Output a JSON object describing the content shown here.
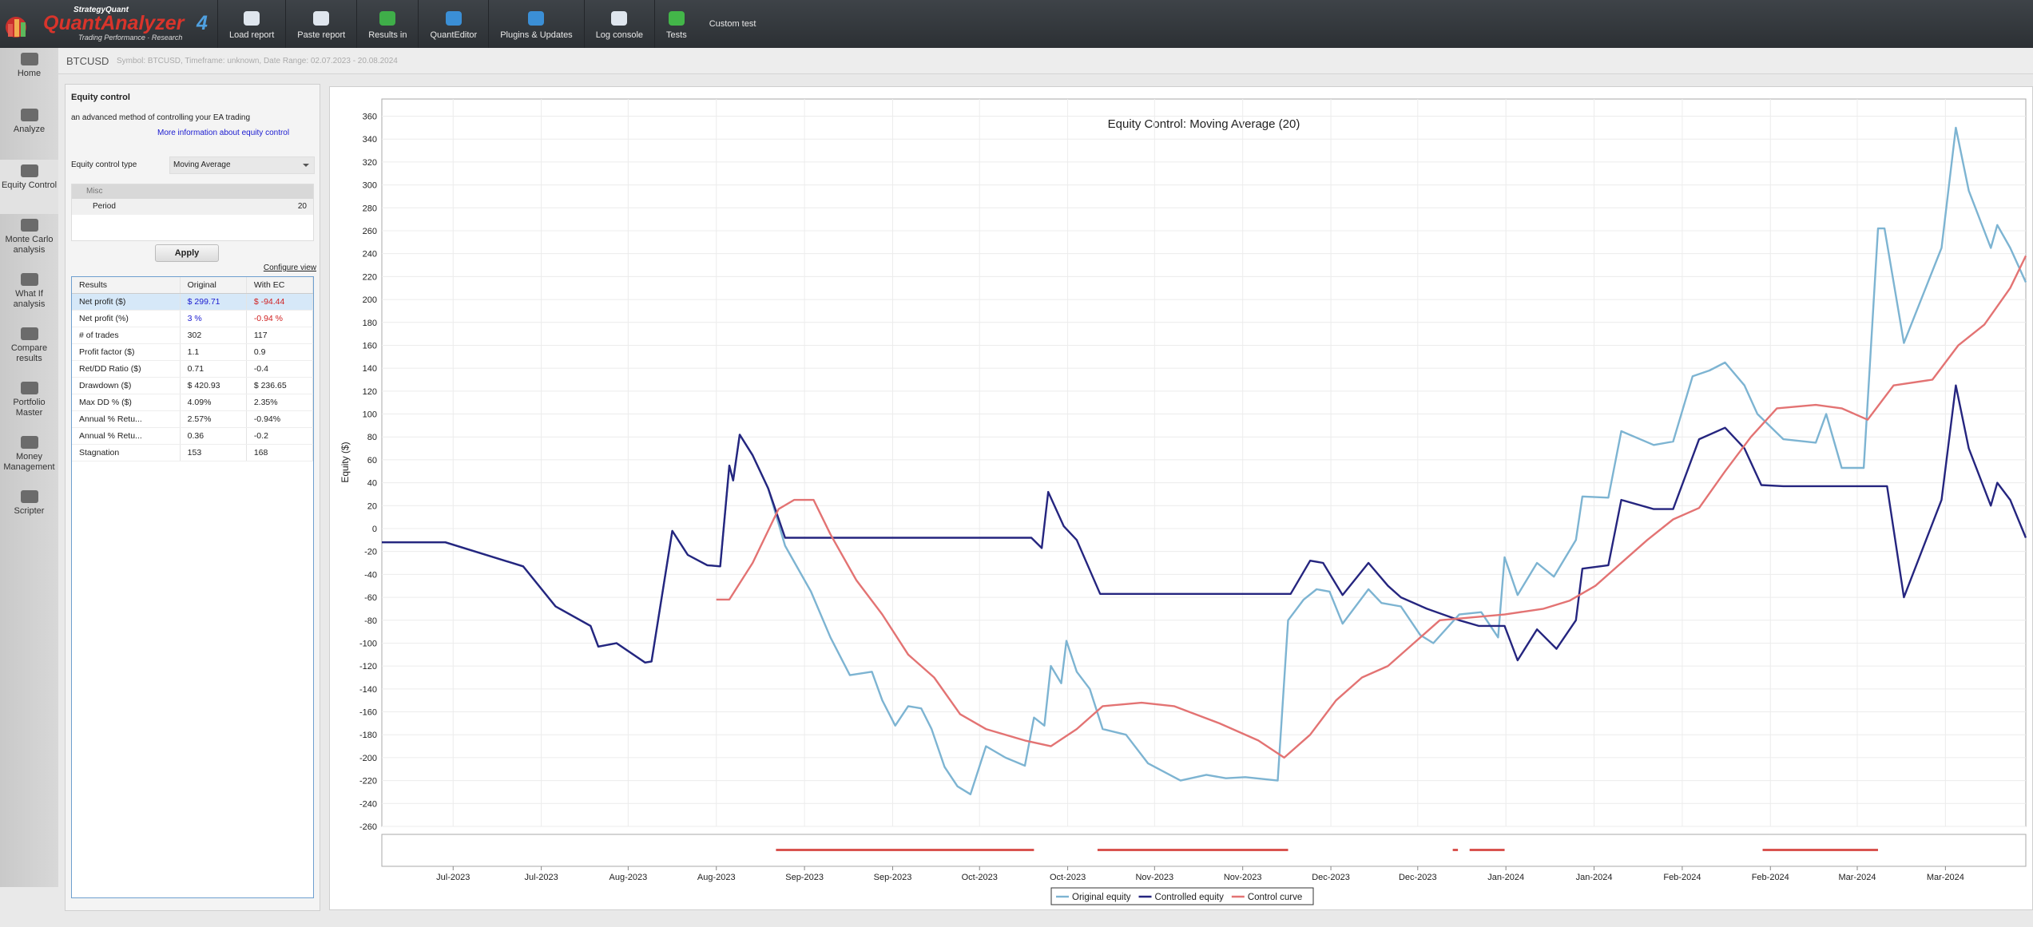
{
  "app": {
    "brand": "StrategyQuant",
    "product": "QuantAnalyzer",
    "version": "4",
    "tagline": "Trading Performance · Research"
  },
  "toolbar": [
    "Load report",
    "Paste report",
    "Results in",
    "QuantEditor",
    "Plugins & Updates",
    "Log console",
    "Tests",
    "Custom test"
  ],
  "sidebar": [
    "Home",
    "Analyze",
    "Equity Control",
    "Monte Carlo analysis",
    "What If analysis",
    "Compare results",
    "Portfolio Master",
    "Money Management",
    "Scripter"
  ],
  "header": {
    "title": "BTCUSD",
    "subtitle": "Symbol: BTCUSD, Timeframe: unknown, Date Range: 02.07.2023 - 20.08.2024"
  },
  "panel": {
    "title": "Equity control",
    "description": "an advanced method of controlling your EA trading",
    "link": "More information about equity control",
    "type_label": "Equity control type",
    "type_value": "Moving Average",
    "group": "Misc",
    "param_name": "Period",
    "param_value": "20",
    "apply": "Apply",
    "configure": "Configure view"
  },
  "table": {
    "columns": [
      "Results",
      "Original",
      "With EC"
    ],
    "rows": [
      [
        "Net profit ($)",
        "$ 299.71",
        "$ -94.44"
      ],
      [
        "Net profit (%)",
        "3 %",
        "-0.94 %"
      ],
      [
        "# of trades",
        "302",
        "117"
      ],
      [
        "Profit factor ($)",
        "1.1",
        "0.9"
      ],
      [
        "Ret/DD Ratio ($)",
        "0.71",
        "-0.4"
      ],
      [
        "Drawdown ($)",
        "$ 420.93",
        "$ 236.65"
      ],
      [
        "Max DD % ($)",
        "4.09%",
        "2.35%"
      ],
      [
        "Annual % Retu...",
        "2.57%",
        "-0.94%"
      ],
      [
        "Annual % Retu...",
        "0.36",
        "-0.2"
      ],
      [
        "Stagnation",
        "153",
        "168"
      ]
    ]
  },
  "chart_data": {
    "type": "line",
    "title": "Equity Control: Moving Average (20)",
    "y_label": "Equity ($)",
    "grid": true,
    "ylim": [
      -260,
      375
    ],
    "yticks": [
      -260,
      -240,
      -220,
      -200,
      -180,
      -160,
      -140,
      -120,
      -100,
      -80,
      -60,
      -40,
      -20,
      0,
      20,
      40,
      60,
      80,
      100,
      120,
      140,
      160,
      180,
      200,
      220,
      240,
      260,
      280,
      300,
      320,
      340,
      360
    ],
    "xlim": [
      0,
      126.8
    ],
    "xticks": [
      {
        "value": 5.5,
        "label": "Jul-2023"
      },
      {
        "value": 12.3,
        "label": "Jul-2023"
      },
      {
        "value": 19.0,
        "label": "Aug-2023"
      },
      {
        "value": 25.8,
        "label": "Aug-2023"
      },
      {
        "value": 32.6,
        "label": "Sep-2023"
      },
      {
        "value": 39.4,
        "label": "Sep-2023"
      },
      {
        "value": 46.1,
        "label": "Oct-2023"
      },
      {
        "value": 52.9,
        "label": "Oct-2023"
      },
      {
        "value": 59.6,
        "label": "Nov-2023"
      },
      {
        "value": 66.4,
        "label": "Nov-2023"
      },
      {
        "value": 73.2,
        "label": "Dec-2023"
      },
      {
        "value": 79.9,
        "label": "Dec-2023"
      },
      {
        "value": 86.7,
        "label": "Jan-2024"
      },
      {
        "value": 93.5,
        "label": "Jan-2024"
      },
      {
        "value": 100.3,
        "label": "Feb-2024"
      },
      {
        "value": 107.1,
        "label": "Feb-2024"
      },
      {
        "value": 113.8,
        "label": "Mar-2024"
      },
      {
        "value": 120.6,
        "label": "Mar-2024"
      }
    ],
    "series": [
      {
        "name": "Original equity",
        "color": "#7db4d2",
        "x": [
          0,
          4.9,
          10.9,
          13.4,
          16.1,
          16.7,
          18.1,
          20.3,
          20.8,
          22.4,
          23.6,
          25.1,
          26.1,
          26.8,
          27.1,
          27.6,
          28.6,
          29.8,
          31.1,
          33.1,
          34.6,
          36.1,
          37.8,
          38.6,
          39.6,
          40.6,
          41.6,
          42.4,
          43.4,
          44.4,
          45.4,
          46.6,
          48.1,
          49.6,
          50.3,
          51.1,
          51.6,
          52.4,
          52.8,
          53.6,
          54.6,
          55.6,
          57.4,
          59.1,
          61.6,
          63.6,
          65.1,
          66.6,
          69.1,
          69.9,
          71.1,
          72.1,
          73.1,
          74.1,
          76.1,
          77.1,
          78.6,
          80.1,
          81.1,
          83.1,
          84.8,
          86.1,
          86.6,
          87.6,
          89.1,
          90.4,
          92.1,
          92.6,
          94.6,
          95.6,
          98.1,
          99.6,
          101.1,
          102.4,
          103.6,
          105.1,
          106.1,
          108.1,
          110.6,
          111.4,
          112.6,
          114.3,
          115.4,
          115.9,
          117.4,
          120.3,
          121.4,
          122.4,
          124.1,
          124.6,
          125.6,
          126.8
        ],
        "values": [
          -12,
          -12,
          -33,
          -68,
          -85,
          -103,
          -100,
          -117,
          -116,
          -2,
          -23,
          -32,
          -33,
          55,
          42,
          82,
          64,
          35,
          -15,
          -55,
          -95,
          -128,
          -125,
          -150,
          -172,
          -155,
          -157,
          -175,
          -208,
          -225,
          -232,
          -190,
          -200,
          -207,
          -165,
          -172,
          -120,
          -135,
          -98,
          -125,
          -140,
          -175,
          -180,
          -205,
          -220,
          -215,
          -218,
          -217,
          -220,
          -80,
          -62,
          -53,
          -55,
          -83,
          -53,
          -65,
          -68,
          -93,
          -100,
          -75,
          -73,
          -95,
          -25,
          -58,
          -30,
          -42,
          -10,
          28,
          27,
          85,
          73,
          76,
          133,
          138,
          145,
          125,
          100,
          78,
          75,
          100,
          53,
          53,
          262,
          262,
          162,
          245,
          350,
          295,
          245,
          265,
          245,
          215
        ]
      },
      {
        "name": "Controlled equity",
        "color": "#25257f",
        "x": [
          0,
          4.9,
          10.9,
          13.4,
          16.1,
          16.7,
          18.1,
          20.3,
          20.8,
          22.4,
          23.6,
          25.1,
          26.1,
          26.8,
          27.1,
          27.6,
          28.6,
          29.8,
          31.1,
          50.1,
          50.9,
          51.4,
          52.6,
          53.6,
          55.4,
          70.1,
          71.6,
          72.6,
          74.1,
          76.1,
          77.6,
          78.6,
          80.6,
          83.1,
          84.6,
          86.6,
          87.6,
          89.1,
          90.6,
          92.1,
          92.6,
          94.6,
          95.6,
          98.1,
          99.6,
          101.6,
          103.6,
          105.1,
          106.4,
          108.1,
          116.1,
          117.4,
          120.3,
          121.4,
          122.4,
          124.1,
          124.6,
          125.6,
          126.8
        ],
        "values": [
          -12,
          -12,
          -33,
          -68,
          -85,
          -103,
          -100,
          -117,
          -116,
          -2,
          -23,
          -32,
          -33,
          55,
          42,
          82,
          64,
          35,
          -8,
          -8,
          -17,
          32,
          2,
          -10,
          -57,
          -57,
          -28,
          -30,
          -58,
          -30,
          -50,
          -60,
          -70,
          -80,
          -85,
          -85,
          -115,
          -88,
          -105,
          -80,
          -35,
          -32,
          25,
          17,
          17,
          78,
          88,
          70,
          38,
          37,
          37,
          -60,
          25,
          125,
          70,
          20,
          40,
          25,
          -8
        ]
      },
      {
        "name": "Control curve",
        "color": "#e37373",
        "x": [
          25.8,
          26.8,
          28.6,
          30.6,
          31.8,
          33.3,
          34.6,
          36.6,
          38.6,
          40.6,
          42.6,
          44.6,
          46.6,
          49.6,
          51.6,
          53.6,
          55.6,
          58.6,
          61.1,
          64.6,
          67.6,
          69.6,
          71.6,
          73.6,
          75.6,
          77.6,
          79.6,
          81.6,
          83.6,
          86.6,
          89.6,
          91.6,
          93.6,
          95.6,
          97.6,
          99.6,
          101.6,
          103.6,
          105.6,
          107.6,
          110.6,
          112.6,
          114.6,
          116.6,
          119.6,
          121.6,
          123.6,
          125.6,
          126.8
        ],
        "values": [
          -62,
          -62,
          -30,
          17,
          25,
          25,
          -5,
          -45,
          -75,
          -110,
          -130,
          -162,
          -175,
          -185,
          -190,
          -175,
          -155,
          -152,
          -155,
          -170,
          -185,
          -200,
          -180,
          -150,
          -130,
          -120,
          -100,
          -80,
          -78,
          -75,
          -70,
          -63,
          -50,
          -30,
          -10,
          8,
          18,
          50,
          80,
          105,
          108,
          105,
          95,
          125,
          130,
          160,
          178,
          210,
          238
        ]
      }
    ],
    "stop_periods": [
      [
        30.4,
        50.3
      ],
      [
        55.2,
        69.9
      ],
      [
        82.6,
        83.0
      ],
      [
        83.9,
        86.6
      ],
      [
        106.5,
        115.4
      ]
    ],
    "stop_color": "#d9534f"
  }
}
